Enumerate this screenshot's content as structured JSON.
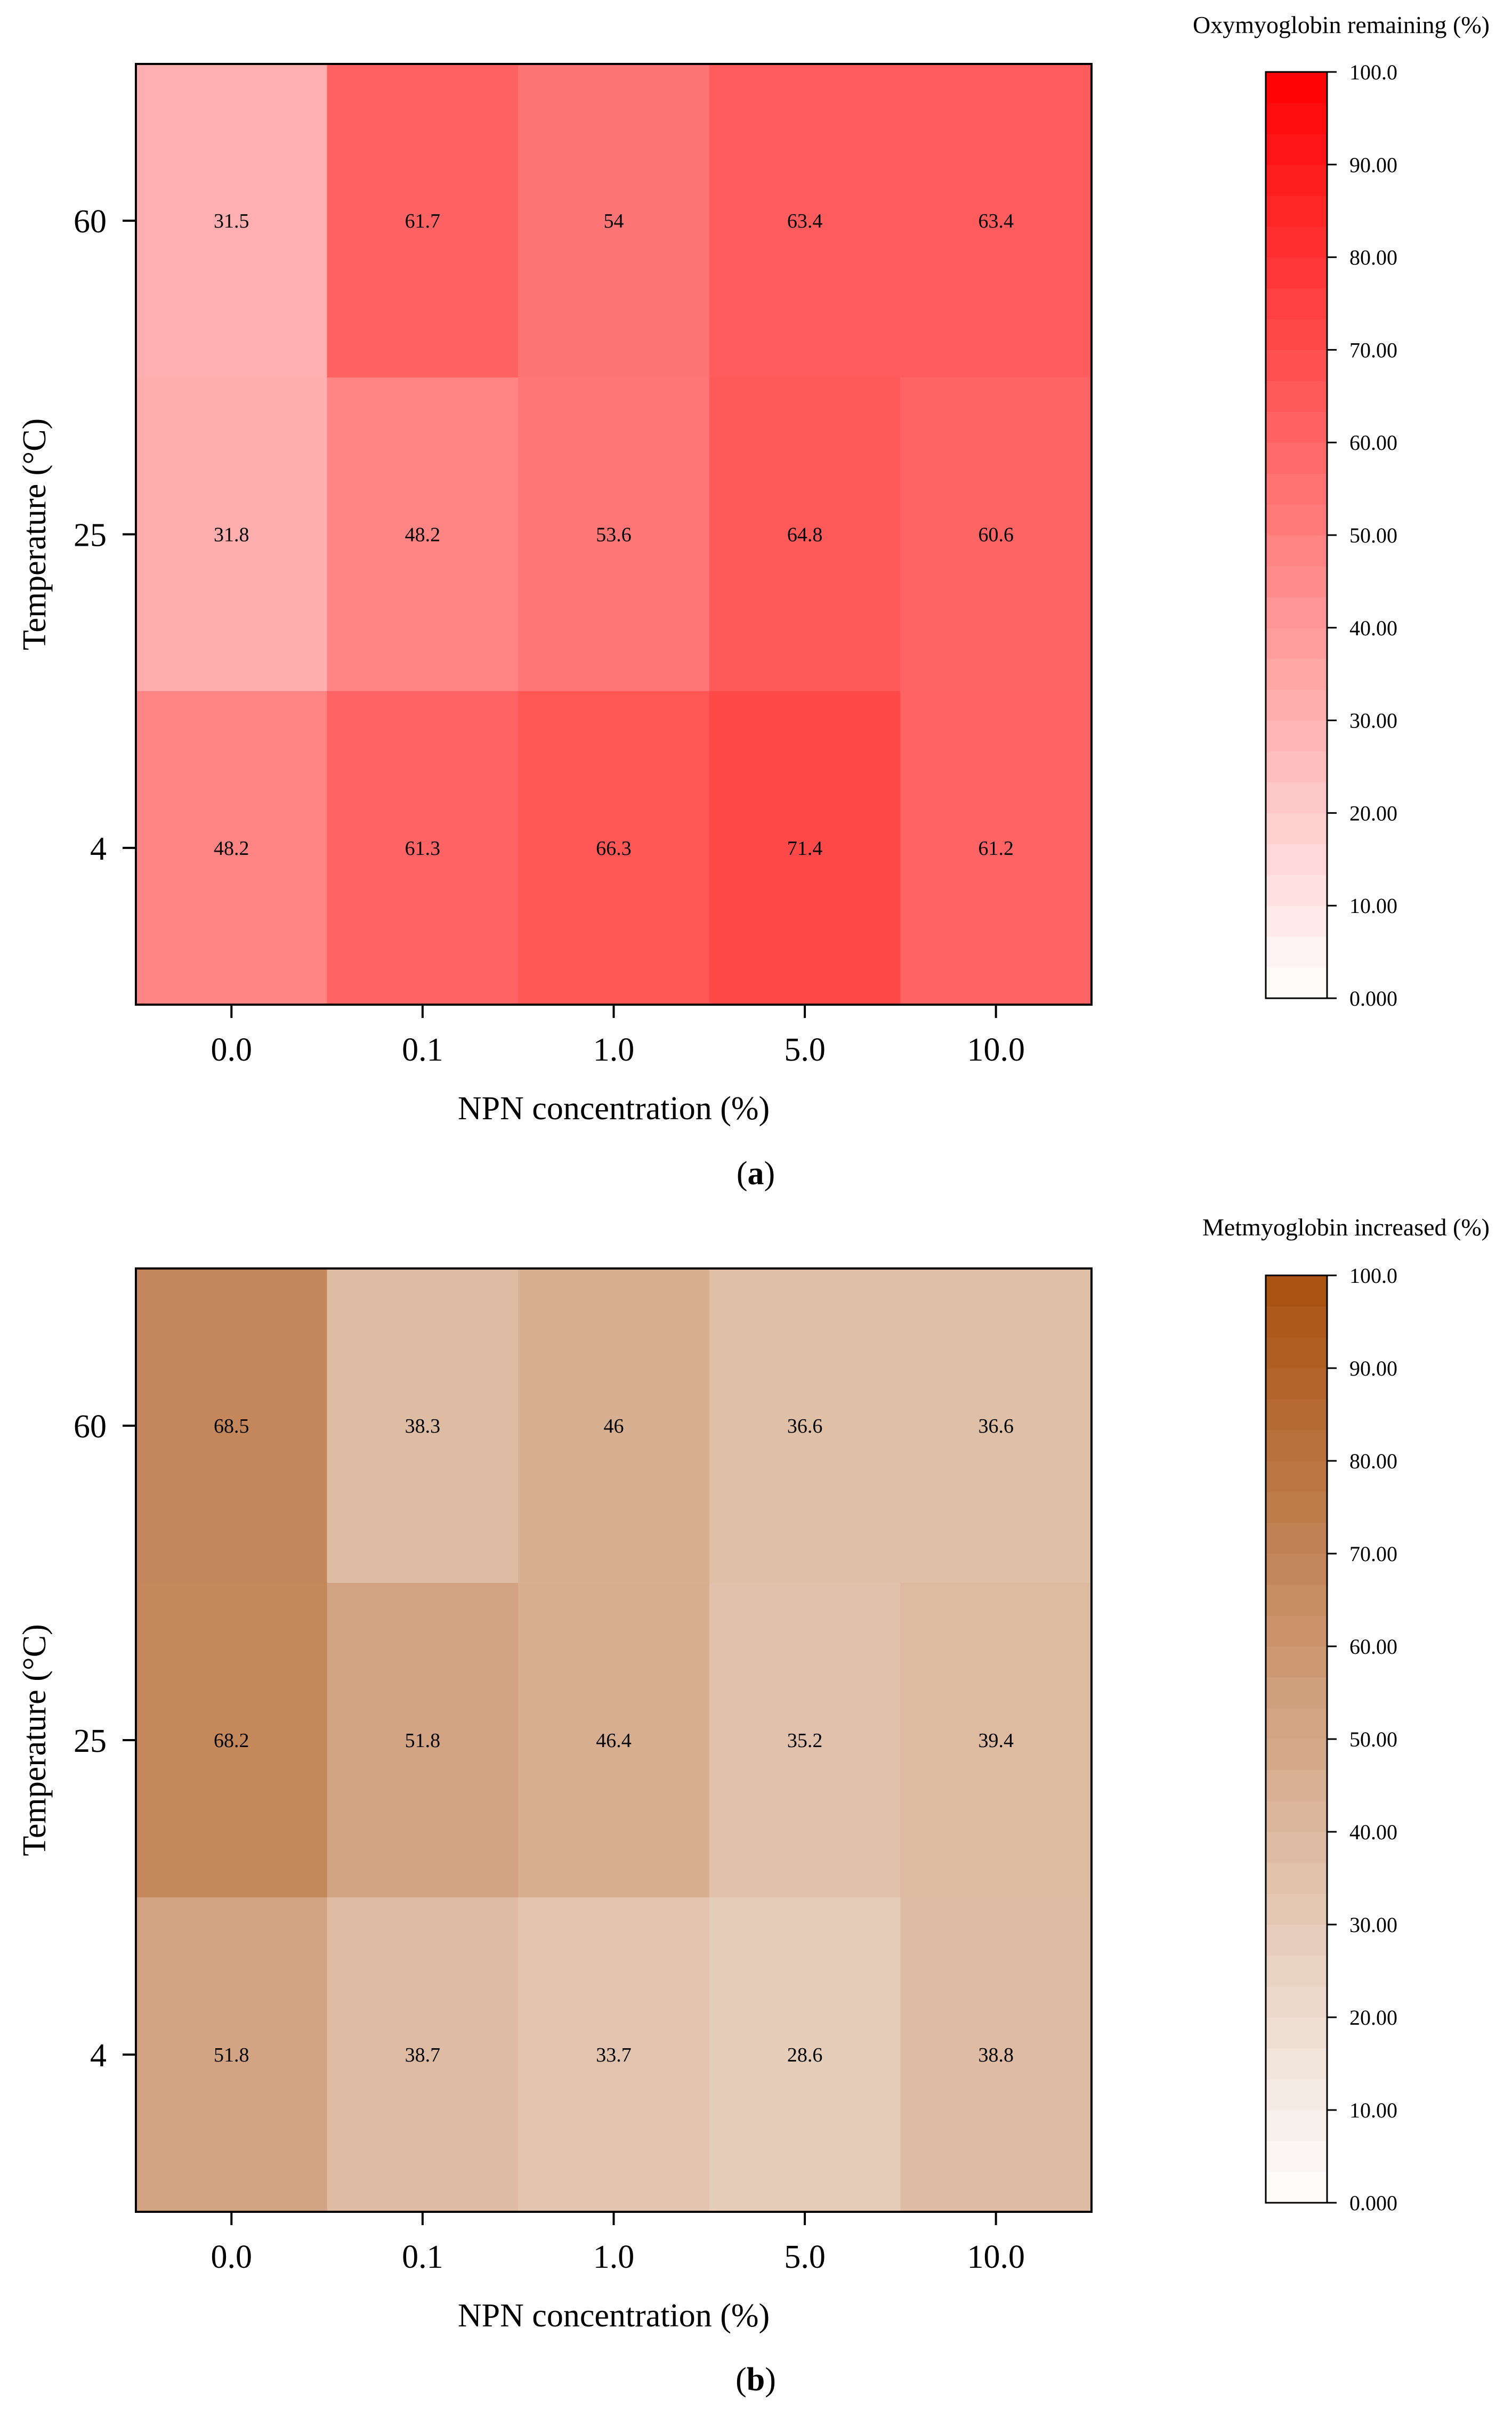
{
  "figure": {
    "panels": [
      {
        "id": "a",
        "caption_letter": "a",
        "accent_color": "#ff0000",
        "chart_data": {
          "type": "heatmap",
          "title": "",
          "xlabel": "NPN concentration (%)",
          "ylabel": "Temperature (°C)",
          "x_categories": [
            "0.0",
            "0.1",
            "1.0",
            "5.0",
            "10.0"
          ],
          "y_categories": [
            "60",
            "25",
            "4"
          ],
          "values": [
            [
              31.5,
              61.7,
              54,
              63.4,
              63.4
            ],
            [
              31.8,
              48.2,
              53.6,
              64.8,
              60.6
            ],
            [
              48.2,
              61.3,
              66.3,
              71.4,
              61.2
            ]
          ],
          "value_labels": [
            [
              "31.5",
              "61.7",
              "54",
              "63.4",
              "63.4"
            ],
            [
              "31.8",
              "48.2",
              "53.6",
              "64.8",
              "60.6"
            ],
            [
              "48.2",
              "61.3",
              "66.3",
              "71.4",
              "61.2"
            ]
          ],
          "colorbar": {
            "title": "Oxymyoglobin remaining (%)",
            "min": 0,
            "max": 100,
            "tick_labels": [
              "0.000",
              "10.00",
              "20.00",
              "30.00",
              "40.00",
              "50.00",
              "60.00",
              "70.00",
              "80.00",
              "90.00",
              "100.0"
            ],
            "low_color": "#ffffff",
            "high_color": "#ff0000"
          }
        }
      },
      {
        "id": "b",
        "caption_letter": "b",
        "accent_color": "#a9500f",
        "chart_data": {
          "type": "heatmap",
          "title": "",
          "xlabel": "NPN concentration (%)",
          "ylabel": "Temperature (°C)",
          "x_categories": [
            "0.0",
            "0.1",
            "1.0",
            "5.0",
            "10.0"
          ],
          "y_categories": [
            "60",
            "25",
            "4"
          ],
          "values": [
            [
              68.5,
              38.3,
              46,
              36.6,
              36.6
            ],
            [
              68.2,
              51.8,
              46.4,
              35.2,
              39.4
            ],
            [
              51.8,
              38.7,
              33.7,
              28.6,
              38.8
            ]
          ],
          "value_labels": [
            [
              "68.5",
              "38.3",
              "46",
              "36.6",
              "36.6"
            ],
            [
              "68.2",
              "51.8",
              "46.4",
              "35.2",
              "39.4"
            ],
            [
              "51.8",
              "38.7",
              "33.7",
              "28.6",
              "38.8"
            ]
          ],
          "colorbar": {
            "title": "Metmyoglobin increased (%)",
            "min": 0,
            "max": 100,
            "tick_labels": [
              "0.000",
              "10.00",
              "20.00",
              "30.00",
              "40.00",
              "50.00",
              "60.00",
              "70.00",
              "80.00",
              "90.00",
              "100.0"
            ],
            "low_color": "#ffffff",
            "high_color": "#a9500f"
          }
        }
      }
    ]
  }
}
